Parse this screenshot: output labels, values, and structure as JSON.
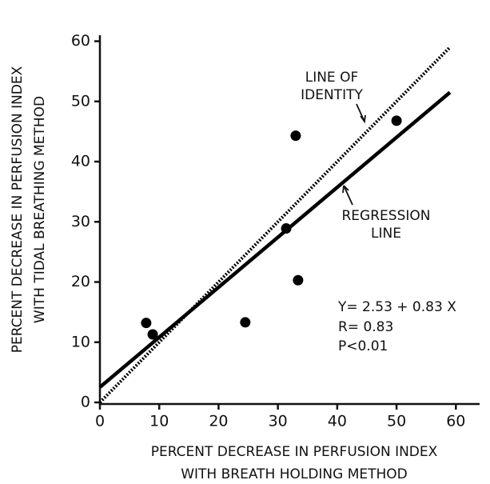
{
  "chart_data": {
    "type": "scatter",
    "x_label": [
      "PERCENT DECREASE IN PERFUSION INDEX",
      "WITH BREATH HOLDING METHOD"
    ],
    "y_label": [
      "PERCENT DECREASE IN PERFUSION INDEX",
      "WITH TIDAL BREATHING METHOD"
    ],
    "x": [
      7.8,
      8.9,
      24.5,
      31.4,
      33.0,
      33.4,
      50.0
    ],
    "values": [
      13.2,
      11.3,
      13.3,
      28.9,
      44.3,
      20.3,
      46.8
    ],
    "color": "#000000",
    "lines": [
      {
        "label": [
          "LINE OF",
          "IDENTITY"
        ],
        "x": [
          0,
          59
        ],
        "values": [
          0,
          59
        ],
        "dotted": true
      },
      {
        "label": [
          "REGRESSION",
          "LINE"
        ],
        "x": [
          0,
          59
        ],
        "values": [
          2.53,
          51.5
        ],
        "dotted": false
      }
    ],
    "annotation": [
      "Y= 2.53 + 0.83 X",
      "R= 0.83",
      "P<0.01"
    ],
    "xlim": [
      0,
      64
    ],
    "ylim": [
      0,
      61
    ],
    "xticks": [
      0,
      10,
      20,
      30,
      40,
      50,
      60
    ],
    "yticks": [
      0,
      10,
      20,
      30,
      40,
      50,
      60
    ]
  }
}
